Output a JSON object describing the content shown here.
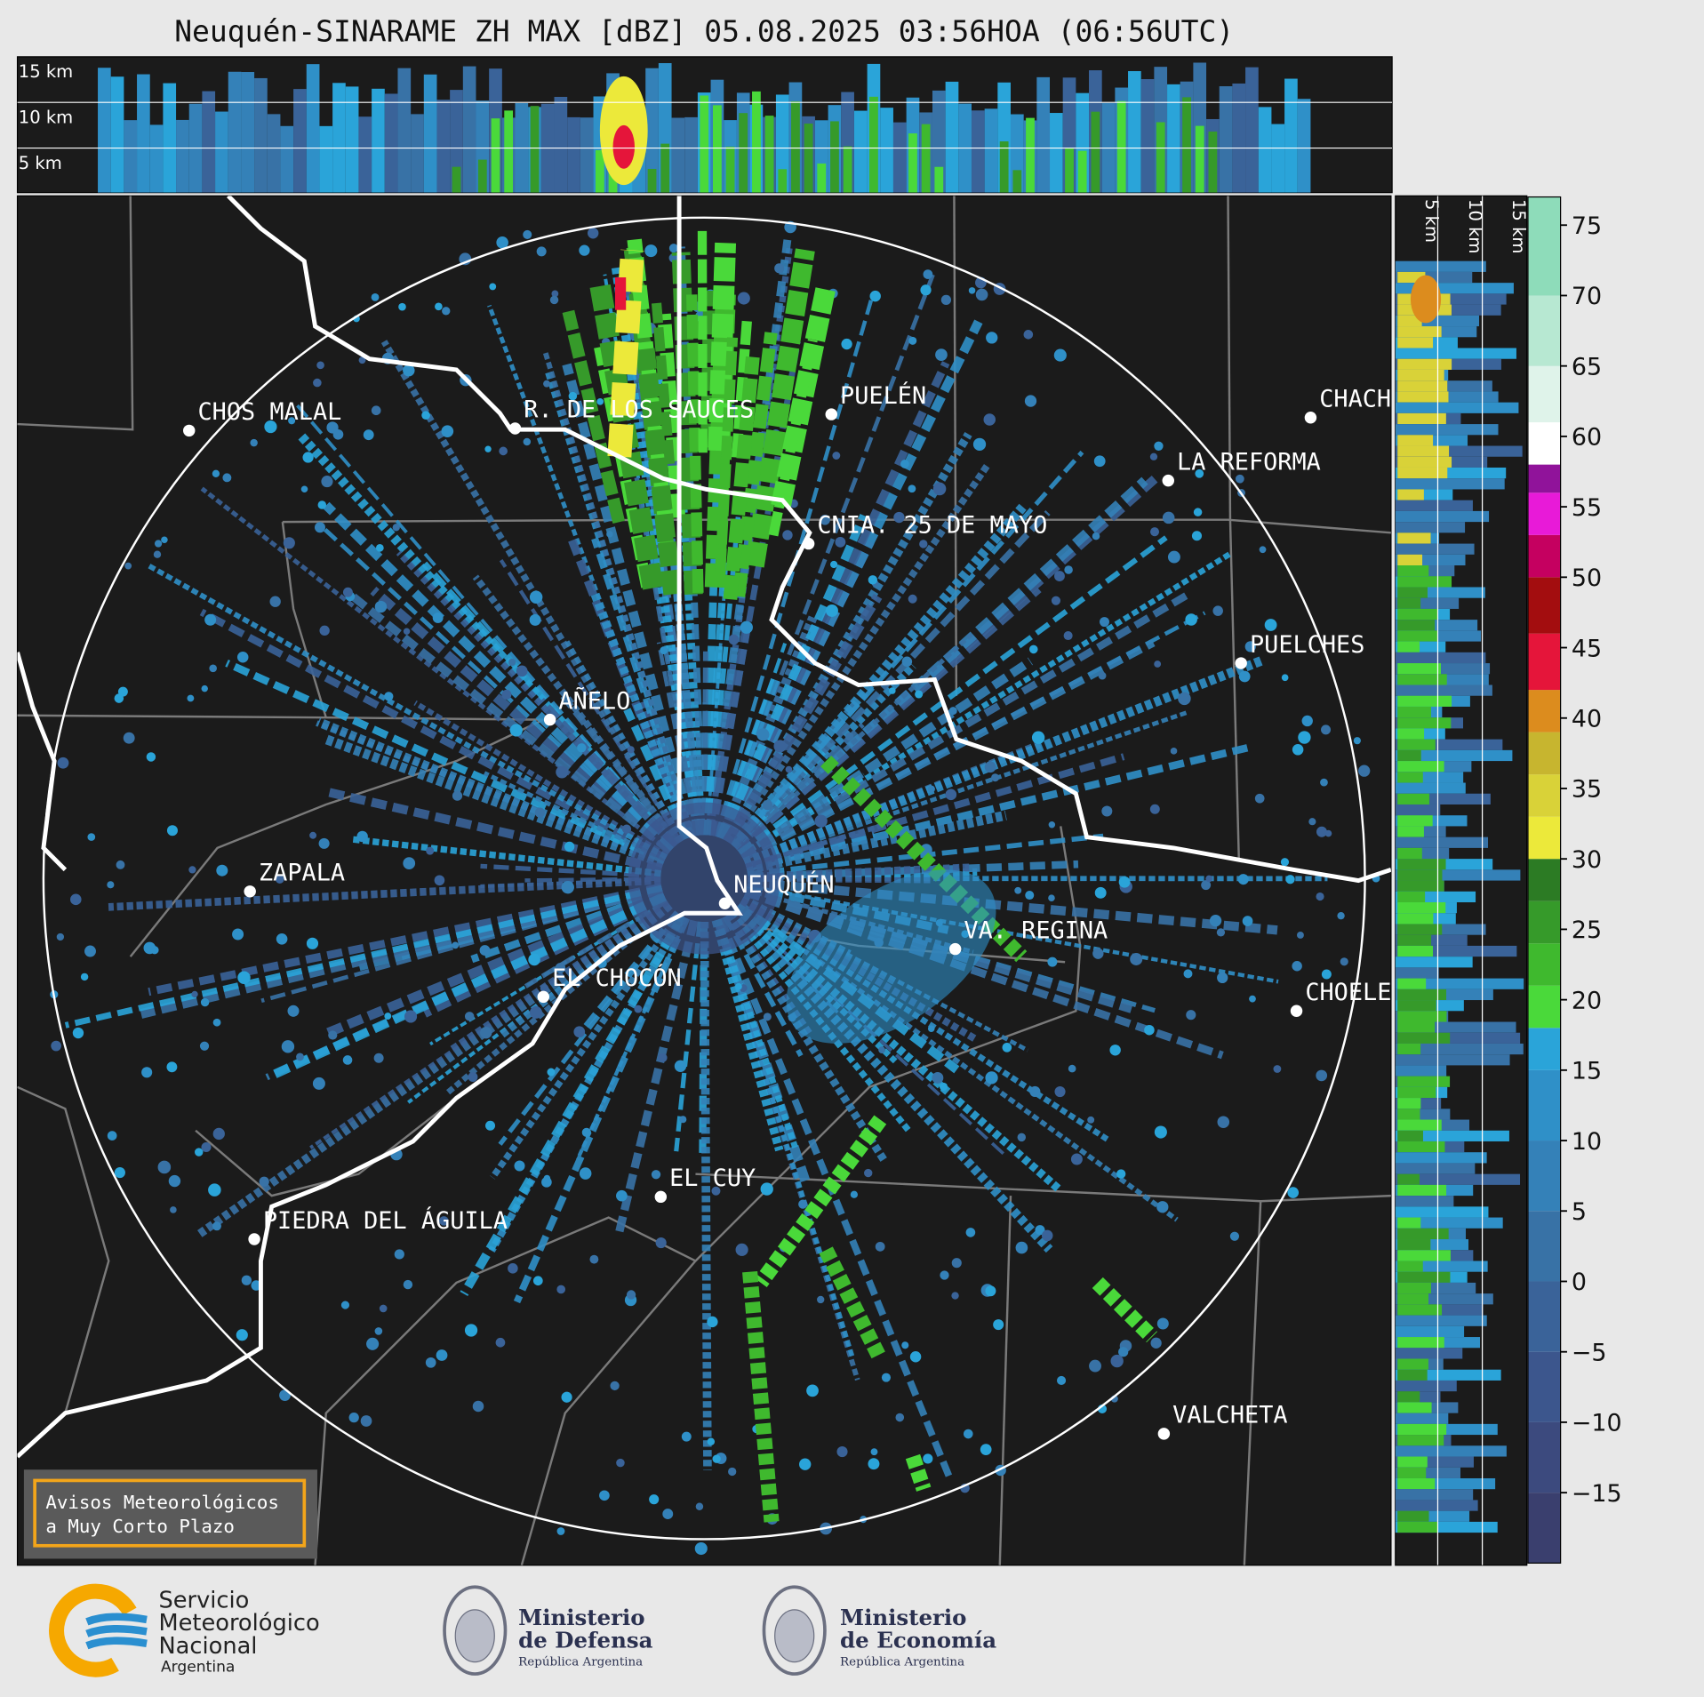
{
  "title": "Neuquén-SINARAME ZH MAX [dBZ] 05.08.2025 03:56HOA (06:56UTC)",
  "top_panel": {
    "height_labels": [
      "15 km",
      "10 km",
      "5 km"
    ]
  },
  "side_panel": {
    "height_labels": [
      "5 km",
      "10 km",
      "15 km"
    ]
  },
  "cities": [
    "CHOS MALAL",
    "R. DE LOS SAUCES",
    "PUELÉN",
    "CHACH",
    "LA REFORMA",
    "CNIA. 25 DE MAYO",
    "PUELCHES",
    "AÑELO",
    "ZAPALA",
    "NEUQUÉN",
    "VA. REGINA",
    "CHOELE",
    "EL CHOCÓN",
    "EL CUY",
    "PIEDRA DEL ÁGUILA",
    "VALCHETA"
  ],
  "warning_box": [
    "Avisos Meteorológicos",
    "a Muy Corto Plazo"
  ],
  "colorbar": {
    "lim": [
      -20,
      77
    ],
    "ticks": [
      75,
      70,
      65,
      60,
      55,
      50,
      45,
      40,
      35,
      30,
      25,
      20,
      15,
      10,
      5,
      {
        "value": 0,
        "label": "0"
      },
      {
        "value": -5,
        "label": "−5"
      },
      {
        "value": -10,
        "label": "−10"
      },
      {
        "value": -15,
        "label": "−15"
      }
    ],
    "bands": [
      {
        "from": -20,
        "color": "#3a3f6e"
      },
      {
        "from": -15,
        "color": "#3c4a7e"
      },
      {
        "from": -10,
        "color": "#3c568d"
      },
      {
        "from": -5,
        "color": "#3a6399"
      },
      {
        "from": 0,
        "color": "#3872a6"
      },
      {
        "from": 5,
        "color": "#3481b8"
      },
      {
        "from": 10,
        "color": "#2f90c8"
      },
      {
        "from": 15,
        "color": "#2aa4d9"
      },
      {
        "from": 18,
        "color": "#4ad93a"
      },
      {
        "from": 21,
        "color": "#3fb92e"
      },
      {
        "from": 24,
        "color": "#369a2a"
      },
      {
        "from": 27,
        "color": "#2c7b24"
      },
      {
        "from": 30,
        "color": "#ece93a"
      },
      {
        "from": 33,
        "color": "#d9d238"
      },
      {
        "from": 36,
        "color": "#c7b52f"
      },
      {
        "from": 39,
        "color": "#dc8c1e"
      },
      {
        "from": 42,
        "color": "#e5153a"
      },
      {
        "from": 46,
        "color": "#a30d0f"
      },
      {
        "from": 50,
        "color": "#c50060"
      },
      {
        "from": 53,
        "color": "#e81ad8"
      },
      {
        "from": 56,
        "color": "#90139a"
      },
      {
        "from": 58,
        "color": "#ffffff"
      },
      {
        "from": 61,
        "color": "#dff3ea"
      },
      {
        "from": 65,
        "color": "#b7e8d2"
      },
      {
        "from": 70,
        "color": "#8edcba"
      }
    ]
  },
  "logos": {
    "smn": [
      "Servicio",
      "Meteorológico",
      "Nacional",
      "Argentina"
    ],
    "defensa": [
      "Ministerio",
      "de Defensa",
      "República Argentina"
    ],
    "economia": [
      "Ministerio",
      "de Economía",
      "República Argentina"
    ]
  }
}
